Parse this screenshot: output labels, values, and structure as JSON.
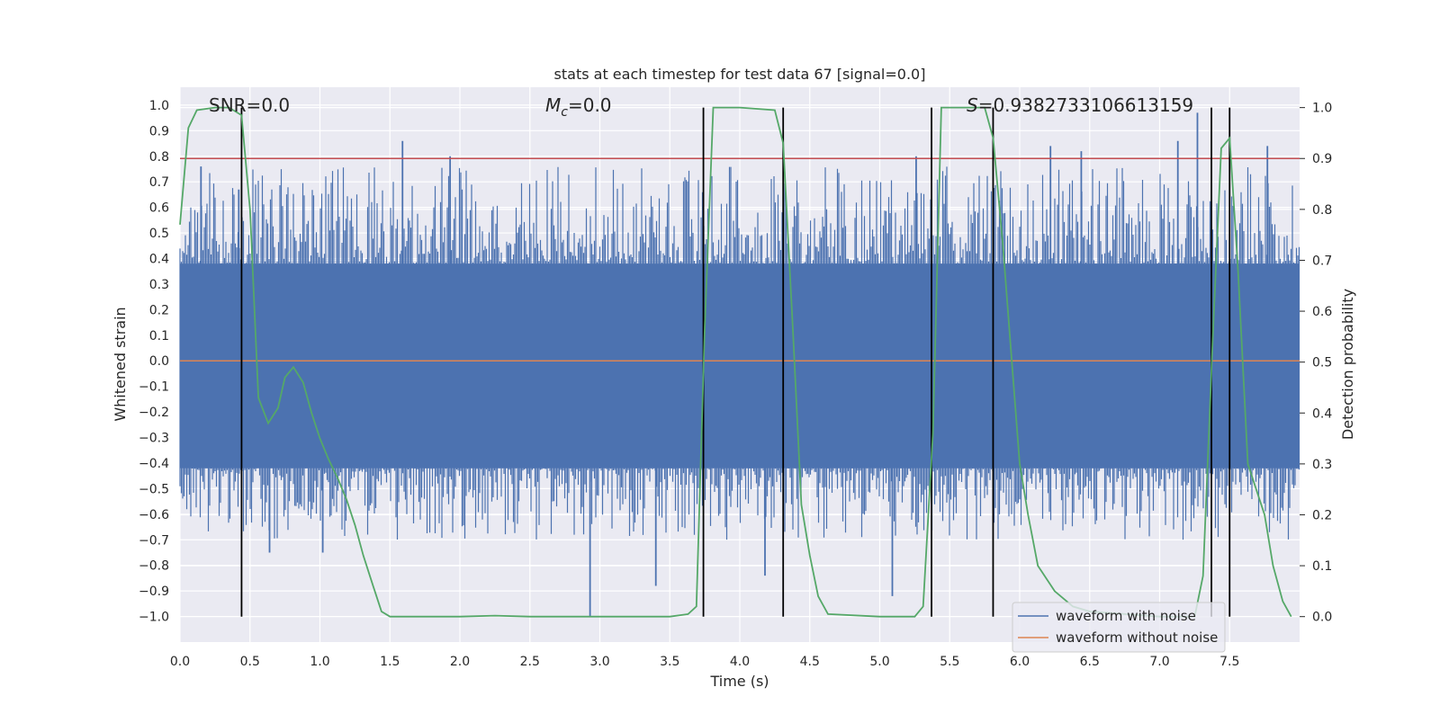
{
  "chart_data": {
    "type": "line",
    "title": "stats at each timestep for test data 67 [signal=0.0]",
    "xlabel": "Time (s)",
    "ylabel": "Whitened strain",
    "y2label": "Detection probability",
    "xlim": [
      0.0,
      8.0
    ],
    "ylim": [
      -1.1,
      1.07
    ],
    "y2lim": [
      -0.05,
      1.04
    ],
    "xticks": [
      "0.0",
      "0.5",
      "1.0",
      "1.5",
      "2.0",
      "2.5",
      "3.0",
      "3.5",
      "4.0",
      "4.5",
      "5.0",
      "5.5",
      "6.0",
      "6.5",
      "7.0",
      "7.5"
    ],
    "yticks": [
      "1.0",
      "0.9",
      "0.8",
      "0.7",
      "0.6",
      "0.5",
      "0.4",
      "0.3",
      "0.2",
      "0.1",
      "0.0",
      "-0.1",
      "-0.2",
      "-0.3",
      "-0.4",
      "-0.5",
      "-0.6",
      "-0.7",
      "-0.8",
      "-0.9",
      "-1.0"
    ],
    "y2ticks": [
      "1.0",
      "0.9",
      "0.8",
      "0.7",
      "0.6",
      "0.5",
      "0.4",
      "0.3",
      "0.2",
      "0.1",
      "0.0"
    ],
    "annotations": {
      "snr_prefix": "SNR=",
      "snr_value": "0.0",
      "mc_symbol": "M",
      "mc_sub": "c",
      "mc_value": "=0.0",
      "s_symbol": "S",
      "s_value": "=0.9382733106613159"
    },
    "grid": true,
    "legend_position": "bottom-right",
    "legend": [
      "waveform with noise",
      "waveform without noise"
    ],
    "noise_band": {
      "lower": -0.42,
      "upper": 0.38
    },
    "noise_spikes": [
      {
        "x": 0.15,
        "y": 0.76
      },
      {
        "x": 0.42,
        "y": 0.67
      },
      {
        "x": 0.64,
        "y": -0.75
      },
      {
        "x": 1.02,
        "y": -0.75
      },
      {
        "x": 1.59,
        "y": 0.86
      },
      {
        "x": 1.93,
        "y": 0.8
      },
      {
        "x": 2.93,
        "y": -1.0
      },
      {
        "x": 3.4,
        "y": -0.88
      },
      {
        "x": 4.18,
        "y": -0.84
      },
      {
        "x": 5.09,
        "y": -0.92
      },
      {
        "x": 5.26,
        "y": 0.8
      },
      {
        "x": 6.22,
        "y": 0.84
      },
      {
        "x": 6.44,
        "y": 0.82
      },
      {
        "x": 7.13,
        "y": 0.86
      },
      {
        "x": 7.27,
        "y": 0.97
      },
      {
        "x": 7.77,
        "y": 0.84
      }
    ],
    "waveform_without_noise": {
      "y": 0.0
    },
    "threshold": 0.9,
    "detection_probability": {
      "x": [
        0.0,
        0.06,
        0.12,
        0.25,
        0.35,
        0.44,
        0.5,
        0.56,
        0.63,
        0.7,
        0.75,
        0.81,
        0.88,
        0.94,
        1.0,
        1.06,
        1.13,
        1.19,
        1.25,
        1.31,
        1.38,
        1.44,
        1.5,
        1.75,
        2.0,
        2.25,
        2.5,
        3.0,
        3.5,
        3.63,
        3.69,
        3.75,
        3.81,
        4.0,
        4.25,
        4.31,
        4.38,
        4.44,
        4.5,
        4.56,
        4.63,
        5.0,
        5.25,
        5.31,
        5.38,
        5.44,
        5.5,
        5.75,
        5.81,
        5.88,
        6.0,
        6.06,
        6.13,
        6.25,
        6.38,
        6.5,
        7.0,
        7.25,
        7.31,
        7.38,
        7.44,
        7.5,
        7.56,
        7.63,
        7.75,
        7.81,
        7.88,
        7.94
      ],
      "y": [
        0.77,
        0.96,
        0.995,
        1.0,
        1.0,
        0.985,
        0.8,
        0.43,
        0.38,
        0.41,
        0.47,
        0.49,
        0.46,
        0.4,
        0.35,
        0.31,
        0.27,
        0.23,
        0.18,
        0.12,
        0.06,
        0.01,
        0.0,
        0.0,
        0.0,
        0.002,
        0.0,
        0.0,
        0.0,
        0.005,
        0.02,
        0.57,
        1.0,
        1.0,
        0.995,
        0.93,
        0.56,
        0.22,
        0.12,
        0.04,
        0.005,
        0.0,
        0.0,
        0.02,
        0.36,
        1.0,
        1.0,
        1.0,
        0.94,
        0.73,
        0.3,
        0.2,
        0.1,
        0.05,
        0.02,
        0.01,
        0.0,
        0.0,
        0.08,
        0.55,
        0.92,
        0.94,
        0.68,
        0.3,
        0.2,
        0.1,
        0.03,
        0.0
      ]
    },
    "detection_boundaries": [
      0.44,
      3.74,
      4.31,
      5.37,
      5.81,
      7.37,
      7.5
    ]
  }
}
